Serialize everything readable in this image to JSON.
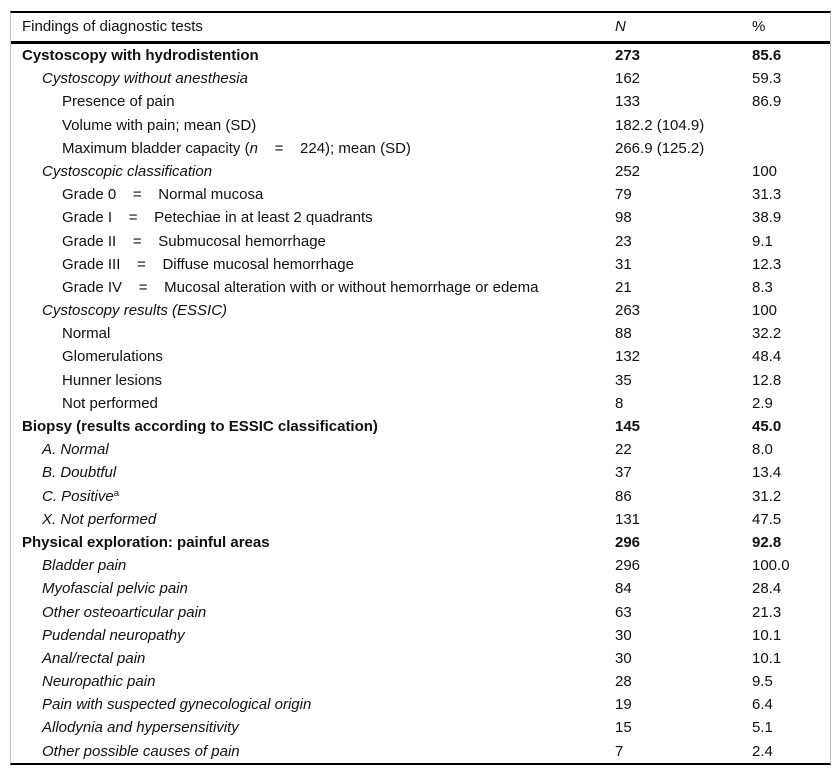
{
  "table": {
    "header": {
      "label": "Findings of diagnostic tests",
      "n": "N",
      "pct": "%"
    },
    "rows": [
      {
        "label": "Cystoscopy with hydrodistention",
        "indent": 0,
        "style": "bold",
        "n": "273",
        "pct": "85.6"
      },
      {
        "label": "Cystoscopy without anesthesia",
        "indent": 1,
        "style": "italic",
        "n": "162",
        "pct": "59.3"
      },
      {
        "label": "Presence of pain",
        "indent": 2,
        "style": "regular",
        "n": "133",
        "pct": "86.9"
      },
      {
        "label": "Volume with pain; mean (SD)",
        "indent": 2,
        "style": "regular",
        "n": "182.2 (104.9)",
        "pct": ""
      },
      {
        "label_pre": "Maximum bladder capacity (",
        "label_it": "n",
        "label_post": "    =    224); mean (SD)",
        "indent": 2,
        "style": "regular",
        "n": "266.9 (125.2)",
        "pct": ""
      },
      {
        "label": "Cystoscopic classification",
        "indent": 1,
        "style": "italic",
        "n": "252",
        "pct": "100"
      },
      {
        "label": "Grade 0    =    Normal mucosa",
        "indent": 2,
        "style": "regular",
        "n": "79",
        "pct": "31.3"
      },
      {
        "label": "Grade I    =    Petechiae in at least 2 quadrants",
        "indent": 2,
        "style": "regular",
        "n": "98",
        "pct": "38.9"
      },
      {
        "label": "Grade II    =    Submucosal hemorrhage",
        "indent": 2,
        "style": "regular",
        "n": "23",
        "pct": "9.1"
      },
      {
        "label": "Grade III    =    Diffuse mucosal hemorrhage",
        "indent": 2,
        "style": "regular",
        "n": "31",
        "pct": "12.3"
      },
      {
        "label": "Grade IV    =    Mucosal alteration with or without hemorrhage or edema",
        "indent": 2,
        "style": "regular",
        "n": "21",
        "pct": "8.3"
      },
      {
        "label": "Cystoscopy results (ESSIC)",
        "indent": 1,
        "style": "italic",
        "n": "263",
        "pct": "100"
      },
      {
        "label": "Normal",
        "indent": 2,
        "style": "regular",
        "n": "88",
        "pct": "32.2"
      },
      {
        "label": "Glomerulations",
        "indent": 2,
        "style": "regular",
        "n": "132",
        "pct": "48.4"
      },
      {
        "label": "Hunner lesions",
        "indent": 2,
        "style": "regular",
        "n": "35",
        "pct": "12.8"
      },
      {
        "label": "Not performed",
        "indent": 2,
        "style": "regular",
        "n": "8",
        "pct": "2.9"
      },
      {
        "label": "Biopsy (results according to ESSIC classification)",
        "indent": 0,
        "style": "bold",
        "n": "145",
        "pct": "45.0"
      },
      {
        "label": "A. Normal",
        "indent": 1,
        "style": "italic",
        "n": "22",
        "pct": "8.0"
      },
      {
        "label": "B. Doubtful",
        "indent": 1,
        "style": "italic",
        "n": "37",
        "pct": "13.4"
      },
      {
        "label": "C. Positive",
        "sup": "a",
        "indent": 1,
        "style": "italic",
        "n": "86",
        "pct": "31.2"
      },
      {
        "label": "X. Not performed",
        "indent": 1,
        "style": "italic",
        "n": "131",
        "pct": "47.5"
      },
      {
        "label": "Physical exploration: painful areas",
        "indent": 0,
        "style": "bold",
        "n": "296",
        "pct": "92.8"
      },
      {
        "label": "Bladder pain",
        "indent": 1,
        "style": "italic",
        "n": "296",
        "pct": "100.0"
      },
      {
        "label": "Myofascial pelvic pain",
        "indent": 1,
        "style": "italic",
        "n": "84",
        "pct": "28.4"
      },
      {
        "label": "Other osteoarticular pain",
        "indent": 1,
        "style": "italic",
        "n": "63",
        "pct": "21.3"
      },
      {
        "label": "Pudendal neuropathy",
        "indent": 1,
        "style": "italic",
        "n": "30",
        "pct": "10.1"
      },
      {
        "label": "Anal/rectal pain",
        "indent": 1,
        "style": "italic",
        "n": "30",
        "pct": "10.1"
      },
      {
        "label": "Neuropathic pain",
        "indent": 1,
        "style": "italic",
        "n": "28",
        "pct": "9.5"
      },
      {
        "label": "Pain with suspected gynecological origin",
        "indent": 1,
        "style": "italic",
        "n": "19",
        "pct": "6.4"
      },
      {
        "label": "Allodynia and hypersensitivity",
        "indent": 1,
        "style": "italic",
        "n": "15",
        "pct": "5.1"
      },
      {
        "label": "Other possible causes of pain",
        "indent": 1,
        "style": "italic",
        "n": "7",
        "pct": "2.4"
      }
    ],
    "colors": {
      "rule": "#000000",
      "side_border": "#c4c4c4",
      "text": "#111111",
      "background": "#ffffff"
    }
  }
}
